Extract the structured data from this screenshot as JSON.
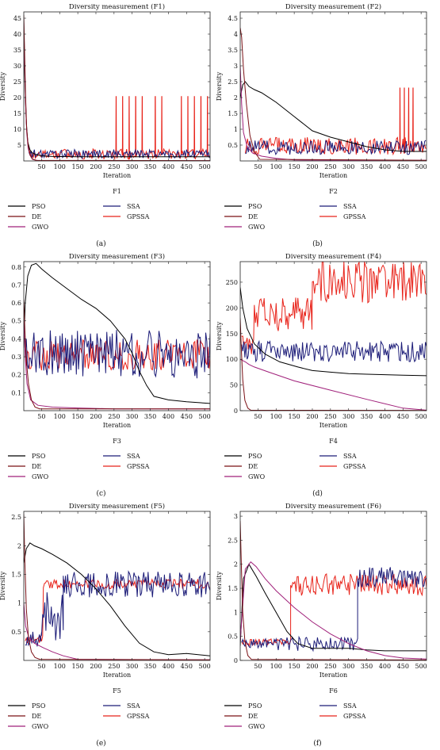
{
  "chart_data": [
    {
      "type": "line",
      "panel": "(a)",
      "title": "Diversity measurement (F1)",
      "caption": "F1",
      "xlabel": "Iteration",
      "ylabel": "Diversity",
      "xlim": [
        1,
        515
      ],
      "ylim": [
        0,
        47
      ],
      "xticks": [
        50,
        100,
        150,
        200,
        250,
        300,
        350,
        400,
        450,
        500
      ],
      "yticks": [
        5,
        10,
        15,
        20,
        25,
        30,
        35,
        40,
        45
      ],
      "series": [
        {
          "name": "PSO",
          "color": "#000000",
          "x": [
            1,
            4,
            8,
            12,
            18,
            25,
            35,
            50,
            80,
            150,
            250,
            350,
            450,
            515
          ],
          "y": [
            40,
            25,
            12,
            6,
            3.5,
            2.5,
            2,
            1.6,
            1.4,
            1.3,
            1.3,
            1.3,
            1.3,
            1.3
          ]
        },
        {
          "name": "DE",
          "color": "#7a1015",
          "x": [
            1,
            3,
            6,
            9,
            13,
            18,
            25,
            35,
            515
          ],
          "y": [
            46,
            36,
            20,
            10,
            5,
            2,
            0.6,
            0.2,
            0.1
          ]
        },
        {
          "name": "GWO",
          "color": "#a0207a",
          "x": [
            1,
            3,
            6,
            9,
            13,
            18,
            25,
            40,
            515
          ],
          "y": [
            44,
            33,
            18,
            9,
            4,
            1.8,
            0.5,
            0.1,
            0.05
          ]
        },
        {
          "name": "SSA",
          "color": "#1c1c78",
          "pattern": {
            "from": 15,
            "to": 515,
            "step": 3,
            "low": 0.8,
            "high": 3.6
          }
        },
        {
          "name": "GPSSA",
          "color": "#e8231a",
          "pattern": {
            "from": 15,
            "to": 515,
            "step": 3,
            "low": 0.5,
            "high": 3.8
          },
          "spikes": {
            "from": 255,
            "to": 515,
            "every": 6,
            "value": 20.3
          }
        }
      ]
    },
    {
      "type": "line",
      "panel": "(b)",
      "title": "Diversity measurement (F2)",
      "caption": "F2",
      "xlabel": "Iteration",
      "ylabel": "Diversity",
      "xlim": [
        1,
        515
      ],
      "ylim": [
        0,
        4.7
      ],
      "xticks": [
        50,
        100,
        150,
        200,
        250,
        300,
        350,
        400,
        450,
        500
      ],
      "yticks": [
        0.5,
        1,
        1.5,
        2,
        2.5,
        3,
        3.5,
        4,
        4.5
      ],
      "series": [
        {
          "name": "PSO",
          "color": "#000000",
          "x": [
            1,
            8,
            15,
            25,
            40,
            60,
            100,
            150,
            200,
            250,
            300,
            350,
            400,
            450,
            515
          ],
          "y": [
            2.0,
            2.4,
            2.5,
            2.35,
            2.25,
            2.15,
            1.85,
            1.4,
            0.95,
            0.75,
            0.6,
            0.45,
            0.35,
            0.3,
            0.3
          ]
        },
        {
          "name": "DE",
          "color": "#7a1015",
          "x": [
            1,
            5,
            10,
            18,
            28,
            40,
            55,
            515
          ],
          "y": [
            4.2,
            3.9,
            2.9,
            1.8,
            0.8,
            0.3,
            0.05,
            0.02
          ]
        },
        {
          "name": "GWO",
          "color": "#a0207a",
          "x": [
            1,
            5,
            10,
            20,
            35,
            60,
            100,
            150,
            515
          ],
          "y": [
            3.0,
            1.8,
            0.9,
            0.45,
            0.25,
            0.15,
            0.08,
            0.03,
            0.02
          ]
        },
        {
          "name": "SSA",
          "color": "#1c1c78",
          "pattern": {
            "from": 15,
            "to": 515,
            "step": 3,
            "low": 0.2,
            "high": 0.65
          }
        },
        {
          "name": "GPSSA",
          "color": "#e8231a",
          "pattern": {
            "from": 15,
            "to": 515,
            "step": 3,
            "low": 0.2,
            "high": 0.75
          },
          "spikes": {
            "from": 440,
            "to": 515,
            "every": 4,
            "value": 2.3
          }
        }
      ]
    },
    {
      "type": "line",
      "panel": "(c)",
      "title": "Diversity measurement (F3)",
      "caption": "F3",
      "xlabel": "Iteration",
      "ylabel": "Diversity",
      "xlim": [
        1,
        515
      ],
      "ylim": [
        0,
        0.83
      ],
      "xticks": [
        50,
        100,
        150,
        200,
        250,
        300,
        350,
        400,
        450,
        500
      ],
      "yticks": [
        0.1,
        0.2,
        0.3,
        0.4,
        0.5,
        0.6,
        0.7,
        0.8
      ],
      "series": [
        {
          "name": "PSO",
          "color": "#000000",
          "x": [
            1,
            5,
            12,
            22,
            35,
            50,
            80,
            120,
            160,
            200,
            240,
            280,
            300,
            320,
            340,
            360,
            400,
            450,
            515
          ],
          "y": [
            0.35,
            0.6,
            0.75,
            0.81,
            0.82,
            0.79,
            0.74,
            0.68,
            0.62,
            0.57,
            0.5,
            0.4,
            0.32,
            0.22,
            0.14,
            0.08,
            0.06,
            0.05,
            0.04
          ]
        },
        {
          "name": "DE",
          "color": "#7a1015",
          "x": [
            1,
            4,
            8,
            14,
            22,
            32,
            45,
            515
          ],
          "y": [
            0.62,
            0.45,
            0.28,
            0.15,
            0.06,
            0.02,
            0.01,
            0.01
          ]
        },
        {
          "name": "GWO",
          "color": "#a0207a",
          "x": [
            1,
            5,
            10,
            20,
            40,
            80,
            150,
            250,
            515
          ],
          "y": [
            0.5,
            0.3,
            0.15,
            0.06,
            0.03,
            0.02,
            0.015,
            0.01,
            0.01
          ]
        },
        {
          "name": "SSA",
          "color": "#1c1c78",
          "pattern": {
            "from": 5,
            "to": 515,
            "step": 3,
            "low": 0.18,
            "high": 0.45
          }
        },
        {
          "name": "GPSSA",
          "color": "#e8231a",
          "pattern": {
            "from": 5,
            "to": 515,
            "step": 3,
            "low": 0.22,
            "high": 0.4
          }
        }
      ]
    },
    {
      "type": "line",
      "panel": "(d)",
      "title": "Diversity measurement (F4)",
      "caption": "F4",
      "xlabel": "Iteration",
      "ylabel": "Diversity",
      "xlim": [
        1,
        515
      ],
      "ylim": [
        0,
        290
      ],
      "xticks": [
        50,
        100,
        150,
        200,
        250,
        300,
        350,
        400,
        450,
        500
      ],
      "yticks": [
        0,
        50,
        100,
        150,
        200,
        250
      ],
      "series": [
        {
          "name": "PSO",
          "color": "#000000",
          "x": [
            1,
            8,
            20,
            40,
            70,
            110,
            160,
            200,
            250,
            300,
            350,
            400,
            450,
            515
          ],
          "y": [
            240,
            200,
            160,
            130,
            110,
            95,
            85,
            78,
            75,
            72,
            71,
            70,
            69,
            68
          ]
        },
        {
          "name": "DE",
          "color": "#7a1015",
          "x": [
            1,
            4,
            8,
            14,
            22,
            30,
            515
          ],
          "y": [
            180,
            120,
            60,
            20,
            5,
            1,
            0.5
          ]
        },
        {
          "name": "GWO",
          "color": "#a0207a",
          "x": [
            1,
            15,
            25,
            40,
            80,
            150,
            250,
            350,
            450,
            515
          ],
          "y": [
            100,
            95,
            90,
            85,
            75,
            58,
            40,
            22,
            5,
            1
          ]
        },
        {
          "name": "SSA",
          "color": "#1c1c78",
          "pattern": {
            "from": 5,
            "to": 515,
            "step": 3,
            "low": 95,
            "high": 135
          }
        },
        {
          "name": "GPSSA",
          "color": "#e8231a",
          "segments": [
            {
              "from": 5,
              "to": 40,
              "low": 110,
              "high": 150
            },
            {
              "from": 40,
              "to": 200,
              "low": 155,
              "high": 220
            },
            {
              "from": 200,
              "to": 515,
              "low": 210,
              "high": 290
            }
          ]
        }
      ]
    },
    {
      "type": "line",
      "panel": "(e)",
      "title": "Diversity measurement (F5)",
      "caption": "F5",
      "xlabel": "Iteration",
      "ylabel": "Diversity",
      "xlim": [
        1,
        515
      ],
      "ylim": [
        0,
        2.6
      ],
      "xticks": [
        50,
        100,
        150,
        200,
        250,
        300,
        350,
        400,
        450,
        500
      ],
      "yticks": [
        0.5,
        1,
        1.5,
        2,
        2.5
      ],
      "series": [
        {
          "name": "PSO",
          "color": "#000000",
          "x": [
            1,
            8,
            18,
            30,
            50,
            80,
            120,
            160,
            200,
            240,
            280,
            320,
            360,
            400,
            450,
            515
          ],
          "y": [
            1.7,
            1.95,
            2.05,
            2.0,
            1.95,
            1.85,
            1.7,
            1.5,
            1.25,
            0.95,
            0.6,
            0.3,
            0.15,
            0.1,
            0.12,
            0.08
          ]
        },
        {
          "name": "DE",
          "color": "#7a1015",
          "x": [
            1,
            4,
            8,
            14,
            22,
            32,
            45,
            515
          ],
          "y": [
            2.55,
            1.7,
            0.9,
            0.4,
            0.15,
            0.05,
            0.02,
            0.01
          ]
        },
        {
          "name": "GWO",
          "color": "#a0207a",
          "x": [
            1,
            6,
            15,
            30,
            55,
            80,
            110,
            150,
            515
          ],
          "y": [
            1.0,
            0.6,
            0.4,
            0.3,
            0.22,
            0.15,
            0.08,
            0.02,
            0.01
          ]
        },
        {
          "name": "SSA",
          "color": "#1c1c78",
          "segments": [
            {
              "from": 5,
              "to": 50,
              "low": 0.2,
              "high": 0.5
            },
            {
              "from": 50,
              "to": 110,
              "low": 0.3,
              "high": 1.2
            },
            {
              "from": 110,
              "to": 515,
              "low": 1.1,
              "high": 1.55
            }
          ]
        },
        {
          "name": "GPSSA",
          "color": "#e8231a",
          "segments": [
            {
              "from": 5,
              "to": 55,
              "low": 0.3,
              "high": 0.45
            },
            {
              "from": 55,
              "to": 515,
              "low": 1.25,
              "high": 1.42
            }
          ]
        }
      ]
    },
    {
      "type": "line",
      "panel": "(f)",
      "title": "Diversity measurement (F6)",
      "caption": "F6",
      "xlabel": "Iteration",
      "ylabel": "Diversity",
      "xlim": [
        1,
        515
      ],
      "ylim": [
        0,
        3.1
      ],
      "xticks": [
        50,
        100,
        150,
        200,
        250,
        300,
        350,
        400,
        450,
        500
      ],
      "yticks": [
        0,
        0.5,
        1,
        1.5,
        2,
        2.5,
        3
      ],
      "series": [
        {
          "name": "PSO",
          "color": "#000000",
          "x": [
            1,
            10,
            25,
            45,
            70,
            100,
            130,
            160,
            200,
            250,
            300,
            350,
            400,
            450,
            515
          ],
          "y": [
            0.3,
            1.7,
            2.0,
            1.75,
            1.4,
            1.0,
            0.6,
            0.35,
            0.25,
            0.25,
            0.25,
            0.22,
            0.2,
            0.2,
            0.2
          ]
        },
        {
          "name": "DE",
          "color": "#7a1015",
          "x": [
            1,
            4,
            8,
            14,
            22,
            32,
            515
          ],
          "y": [
            2.9,
            2.0,
            1.0,
            0.4,
            0.1,
            0.02,
            0.01
          ]
        },
        {
          "name": "GWO",
          "color": "#a0207a",
          "x": [
            1,
            15,
            30,
            45,
            70,
            100,
            150,
            200,
            250,
            300,
            350,
            400,
            450,
            515
          ],
          "y": [
            0.4,
            1.9,
            2.05,
            1.95,
            1.7,
            1.45,
            1.1,
            0.8,
            0.55,
            0.35,
            0.2,
            0.1,
            0.05,
            0.03
          ]
        },
        {
          "name": "SSA",
          "color": "#1c1c78",
          "segments": [
            {
              "from": 5,
              "to": 100,
              "low": 0.25,
              "high": 0.45
            },
            {
              "from": 100,
              "to": 325,
              "low": 0.2,
              "high": 0.5
            },
            {
              "from": 325,
              "to": 515,
              "low": 1.5,
              "high": 1.95
            }
          ]
        },
        {
          "name": "GPSSA",
          "color": "#e8231a",
          "segments": [
            {
              "from": 5,
              "to": 140,
              "low": 0.3,
              "high": 0.45
            },
            {
              "from": 140,
              "to": 515,
              "low": 1.35,
              "high": 1.8
            }
          ]
        }
      ]
    }
  ]
}
